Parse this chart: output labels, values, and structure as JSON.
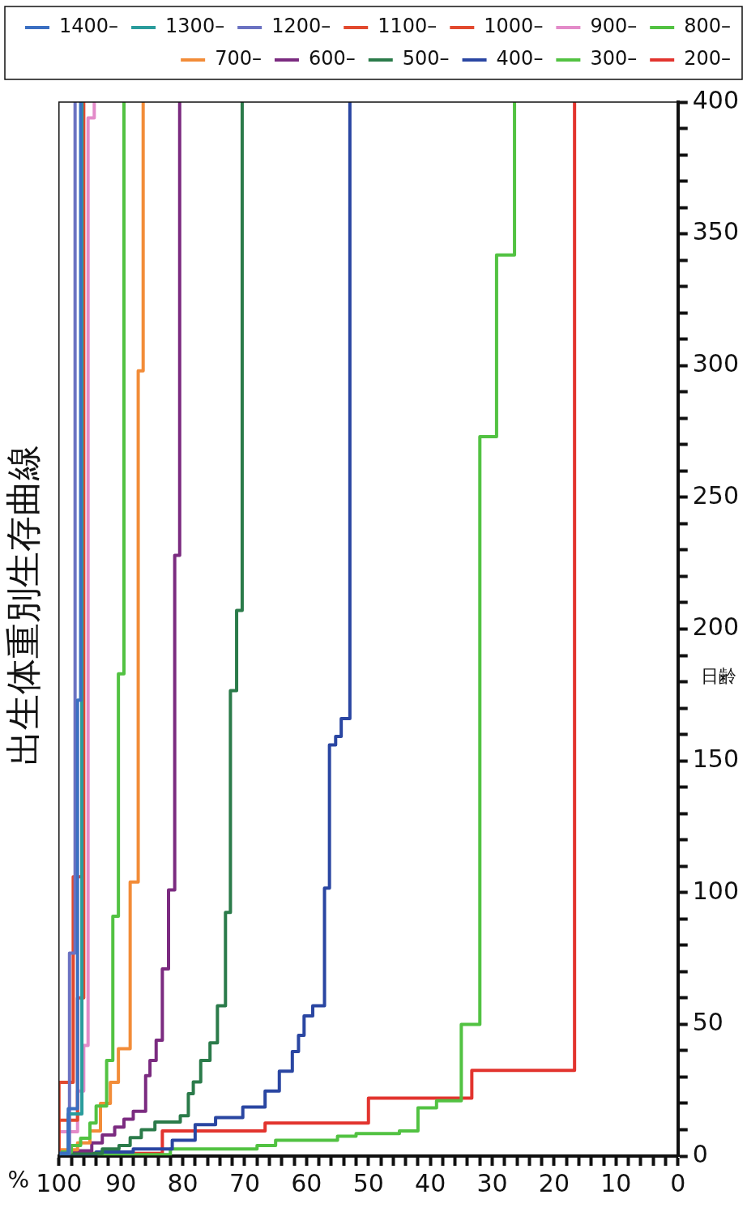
{
  "chart_data": {
    "type": "step",
    "title": "出生体重別生存曲線",
    "xlabel": "%",
    "ylabel": "日齢",
    "legend": "top",
    "marker": "none",
    "grid": false,
    "xlim": [
      100,
      0
    ],
    "xticks": [
      100,
      {
        "value": 98,
        "label": null
      },
      {
        "value": 96,
        "label": null
      },
      {
        "value": 94,
        "label": null
      },
      {
        "value": 92,
        "label": null
      },
      90,
      {
        "value": 88,
        "label": null
      },
      {
        "value": 86,
        "label": null
      },
      {
        "value": 84,
        "label": null
      },
      {
        "value": 82,
        "label": null
      },
      80,
      {
        "value": 78,
        "label": null
      },
      {
        "value": 76,
        "label": null
      },
      {
        "value": 74,
        "label": null
      },
      {
        "value": 72,
        "label": null
      },
      70,
      {
        "value": 68,
        "label": null
      },
      {
        "value": 66,
        "label": null
      },
      {
        "value": 64,
        "label": null
      },
      {
        "value": 62,
        "label": null
      },
      60,
      {
        "value": 58,
        "label": null
      },
      {
        "value": 56,
        "label": null
      },
      {
        "value": 54,
        "label": null
      },
      {
        "value": 52,
        "label": null
      },
      50,
      {
        "value": 48,
        "label": null
      },
      {
        "value": 46,
        "label": null
      },
      {
        "value": 44,
        "label": null
      },
      {
        "value": 42,
        "label": null
      },
      40,
      {
        "value": 38,
        "label": null
      },
      {
        "value": 36,
        "label": null
      },
      {
        "value": 34,
        "label": null
      },
      {
        "value": 32,
        "label": null
      },
      30,
      {
        "value": 28,
        "label": null
      },
      {
        "value": 26,
        "label": null
      },
      {
        "value": 24,
        "label": null
      },
      {
        "value": 22,
        "label": null
      },
      20,
      {
        "value": 18,
        "label": null
      },
      {
        "value": 16,
        "label": null
      },
      {
        "value": 14,
        "label": null
      },
      {
        "value": 12,
        "label": null
      },
      10,
      {
        "value": 8,
        "label": null
      },
      {
        "value": 6,
        "label": null
      },
      {
        "value": 4,
        "label": null
      },
      {
        "value": 2,
        "label": null
      },
      0
    ],
    "ylim": [
      0,
      400
    ],
    "yticks": [
      0,
      {
        "value": 10,
        "label": null
      },
      {
        "value": 20,
        "label": null
      },
      {
        "value": 30,
        "label": null
      },
      {
        "value": 40,
        "label": null
      },
      50,
      {
        "value": 60,
        "label": null
      },
      {
        "value": 70,
        "label": null
      },
      {
        "value": 80,
        "label": null
      },
      {
        "value": 90,
        "label": null
      },
      100,
      {
        "value": 110,
        "label": null
      },
      {
        "value": 120,
        "label": null
      },
      {
        "value": 130,
        "label": null
      },
      {
        "value": 140,
        "label": null
      },
      150,
      {
        "value": 160,
        "label": null
      },
      {
        "value": 170,
        "label": null
      },
      {
        "value": 180,
        "label": null
      },
      {
        "value": 190,
        "label": null
      },
      200,
      {
        "value": 210,
        "label": null
      },
      {
        "value": 220,
        "label": null
      },
      {
        "value": 230,
        "label": null
      },
      {
        "value": 240,
        "label": null
      },
      250,
      {
        "value": 260,
        "label": null
      },
      {
        "value": 270,
        "label": null
      },
      {
        "value": 280,
        "label": null
      },
      {
        "value": 290,
        "label": null
      },
      300,
      {
        "value": 310,
        "label": null
      },
      {
        "value": 320,
        "label": null
      },
      {
        "value": 330,
        "label": null
      },
      {
        "value": 340,
        "label": null
      },
      350,
      {
        "value": 360,
        "label": null
      },
      {
        "value": 370,
        "label": null
      },
      {
        "value": 380,
        "label": null
      },
      {
        "value": 390,
        "label": null
      },
      400
    ],
    "series": [
      {
        "name": "1400–",
        "color": "#3b6fc2",
        "values": [
          0,
          1,
          18,
          173,
          400
        ],
        "x": [
          100,
          98.5,
          97,
          96.5,
          96.5
        ]
      },
      {
        "name": "1300–",
        "color": "#2a9c9c",
        "values": [
          0,
          1,
          16,
          400
        ],
        "x": [
          100,
          98.5,
          96.3,
          96.3
        ]
      },
      {
        "name": "1200–",
        "color": "#6b72c2",
        "values": [
          0,
          1,
          77,
          400
        ],
        "x": [
          100,
          98.3,
          97.4,
          97.4
        ]
      },
      {
        "name": "1100–",
        "color": "#e2492e",
        "values": [
          0,
          28,
          106,
          400
        ],
        "x": [
          100,
          97.7,
          96.3,
          96.3
        ]
      },
      {
        "name": "1000–",
        "color": "#e2492e",
        "values": [
          0,
          13.6,
          60,
          400
        ],
        "x": [
          100,
          97,
          96,
          96
        ]
      },
      {
        "name": "900–",
        "color": "#e38bc9",
        "values": [
          0,
          9.2,
          24.7,
          42,
          394,
          400
        ],
        "x": [
          100,
          97,
          96,
          95.3,
          94.3,
          94.3
        ]
      },
      {
        "name": "800–",
        "color": "#52c242",
        "values": [
          0,
          1.5,
          4,
          6.8,
          12.5,
          19,
          36.3,
          91,
          183,
          400
        ],
        "x": [
          100,
          98,
          96.5,
          95,
          94,
          92.3,
          91.3,
          90.4,
          89.5,
          89.5
        ]
      },
      {
        "name": "700–",
        "color": "#f28c38",
        "values": [
          0,
          2.4,
          5,
          9.5,
          20,
          28,
          40.7,
          104,
          298,
          400
        ],
        "x": [
          100,
          97,
          95,
          93.3,
          91.7,
          90.4,
          88.5,
          87.2,
          86.4,
          86.4
        ]
      },
      {
        "name": "600–",
        "color": "#7b2b80",
        "values": [
          0,
          2,
          5,
          8,
          11,
          14,
          17,
          30.5,
          36.3,
          44,
          71,
          101,
          228,
          400
        ],
        "x": [
          100,
          94.7,
          93,
          91,
          89.5,
          88,
          86,
          85.3,
          84.3,
          83.3,
          82.3,
          81.3,
          80.5,
          80.5
        ]
      },
      {
        "name": "500–",
        "color": "#2b7b4a",
        "values": [
          0,
          1,
          2.7,
          4,
          7,
          10,
          12.9,
          15.3,
          23.7,
          28.1,
          36.3,
          43,
          57,
          92.5,
          176.6,
          207.1,
          400
        ],
        "x": [
          100,
          93,
          90.3,
          88.5,
          86.7,
          84.5,
          80.4,
          79.1,
          78.3,
          77.1,
          75.6,
          74.4,
          73.1,
          72.3,
          71.3,
          70.4,
          70.4
        ]
      },
      {
        "name": "400–",
        "color": "#2a46a2",
        "values": [
          0,
          0.5,
          1.5,
          2.7,
          6,
          11.9,
          14.6,
          18.6,
          24.7,
          32.2,
          39.7,
          45.8,
          53.2,
          57,
          101.7,
          156,
          159.3,
          166,
          400
        ],
        "x": [
          100,
          94,
          88,
          81.7,
          78,
          74.7,
          70.3,
          66.7,
          64.4,
          62.3,
          61.3,
          60.4,
          59,
          57.1,
          56.3,
          55.3,
          54.4,
          53,
          53
        ]
      },
      {
        "name": "300–",
        "color": "#52c242",
        "values": [
          0,
          0.5,
          2.7,
          4,
          6,
          7.5,
          8.5,
          9.5,
          18.3,
          21,
          50,
          273,
          342,
          400
        ],
        "x": [
          100,
          82,
          68,
          65,
          55,
          52,
          45,
          42,
          39,
          35,
          32,
          29.3,
          26.4,
          26.4
        ]
      },
      {
        "name": "200–",
        "color": "#e2342e",
        "values": [
          0,
          1,
          9.5,
          12.5,
          22,
          32.5,
          400
        ],
        "x": [
          100,
          83.3,
          66.7,
          50,
          33.3,
          16.7,
          16.7
        ]
      }
    ]
  }
}
